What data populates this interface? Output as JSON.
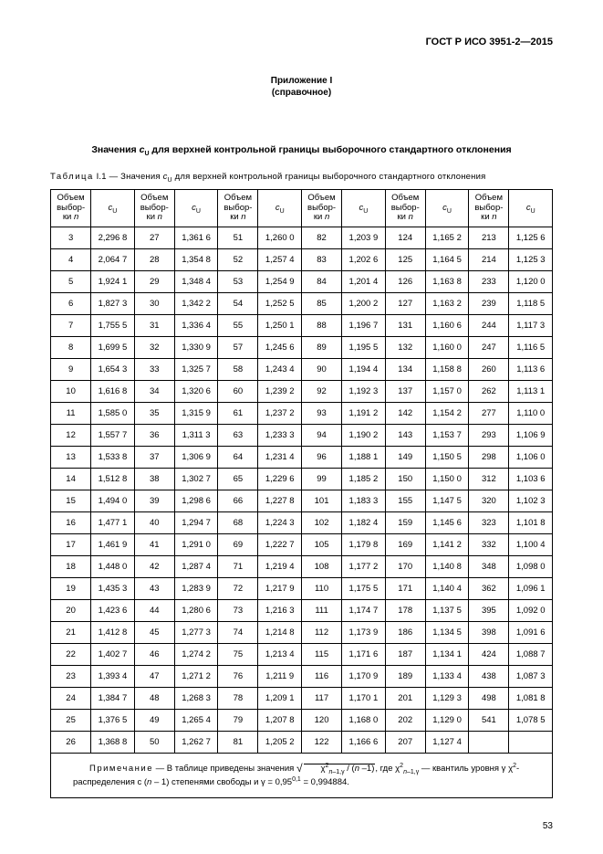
{
  "standard_id": "ГОСТ Р ИСО 3951-2—2015",
  "appendix_line1": "Приложение I",
  "appendix_line2": "(справочное)",
  "title_pre": "Значения ",
  "title_sym": "c",
  "title_sub": "U",
  "title_post": " для верхней контрольной границы выборочного стандартного отклонения",
  "caption_pre": "Таблица",
  "caption_num": " I.1 — Значения ",
  "caption_sym": "c",
  "caption_sub": "U",
  "caption_post": " для верхней контрольной границы выборочного стандартного отклонения",
  "header_n": "Объем выбор-ки ",
  "header_n_ital": "n",
  "header_c": "c",
  "header_c_sub": "U",
  "rows": [
    [
      "3",
      "2,296 8",
      "27",
      "1,361 6",
      "51",
      "1,260 0",
      "82",
      "1,203 9",
      "124",
      "1,165 2",
      "213",
      "1,125 6"
    ],
    [
      "4",
      "2,064 7",
      "28",
      "1,354 8",
      "52",
      "1,257 4",
      "83",
      "1,202 6",
      "125",
      "1,164 5",
      "214",
      "1,125 3"
    ],
    [
      "5",
      "1,924 1",
      "29",
      "1,348 4",
      "53",
      "1,254 9",
      "84",
      "1,201 4",
      "126",
      "1,163 8",
      "233",
      "1,120 0"
    ],
    [
      "6",
      "1,827 3",
      "30",
      "1,342 2",
      "54",
      "1,252 5",
      "85",
      "1,200 2",
      "127",
      "1,163 2",
      "239",
      "1,118 5"
    ],
    [
      "7",
      "1,755 5",
      "31",
      "1,336 4",
      "55",
      "1,250 1",
      "88",
      "1,196 7",
      "131",
      "1,160 6",
      "244",
      "1,117 3"
    ],
    [
      "8",
      "1,699 5",
      "32",
      "1,330 9",
      "57",
      "1,245 6",
      "89",
      "1,195 5",
      "132",
      "1,160 0",
      "247",
      "1,116 5"
    ],
    [
      "9",
      "1,654 3",
      "33",
      "1,325 7",
      "58",
      "1,243 4",
      "90",
      "1,194 4",
      "134",
      "1,158 8",
      "260",
      "1,113 6"
    ],
    [
      "10",
      "1,616 8",
      "34",
      "1,320 6",
      "60",
      "1,239 2",
      "92",
      "1,192 3",
      "137",
      "1,157 0",
      "262",
      "1,113 1"
    ],
    [
      "11",
      "1,585 0",
      "35",
      "1,315 9",
      "61",
      "1,237 2",
      "93",
      "1,191 2",
      "142",
      "1,154 2",
      "277",
      "1,110 0"
    ],
    [
      "12",
      "1,557 7",
      "36",
      "1,311 3",
      "63",
      "1,233 3",
      "94",
      "1,190 2",
      "143",
      "1,153 7",
      "293",
      "1,106 9"
    ],
    [
      "13",
      "1,533 8",
      "37",
      "1,306 9",
      "64",
      "1,231 4",
      "96",
      "1,188 1",
      "149",
      "1,150 5",
      "298",
      "1,106 0"
    ],
    [
      "14",
      "1,512 8",
      "38",
      "1,302 7",
      "65",
      "1,229 6",
      "99",
      "1,185 2",
      "150",
      "1,150 0",
      "312",
      "1,103 6"
    ],
    [
      "15",
      "1,494 0",
      "39",
      "1,298 6",
      "66",
      "1,227 8",
      "101",
      "1,183 3",
      "155",
      "1,147 5",
      "320",
      "1,102 3"
    ],
    [
      "16",
      "1,477 1",
      "40",
      "1,294 7",
      "68",
      "1,224 3",
      "102",
      "1,182 4",
      "159",
      "1,145 6",
      "323",
      "1,101 8"
    ],
    [
      "17",
      "1,461 9",
      "41",
      "1,291 0",
      "69",
      "1,222 7",
      "105",
      "1,179 8",
      "169",
      "1,141 2",
      "332",
      "1,100 4"
    ],
    [
      "18",
      "1,448 0",
      "42",
      "1,287 4",
      "71",
      "1,219 4",
      "108",
      "1,177 2",
      "170",
      "1,140 8",
      "348",
      "1,098 0"
    ],
    [
      "19",
      "1,435 3",
      "43",
      "1,283 9",
      "72",
      "1,217 9",
      "110",
      "1,175 5",
      "171",
      "1,140 4",
      "362",
      "1,096 1"
    ],
    [
      "20",
      "1,423 6",
      "44",
      "1,280 6",
      "73",
      "1,216 3",
      "111",
      "1,174 7",
      "178",
      "1,137 5",
      "395",
      "1,092 0"
    ],
    [
      "21",
      "1,412 8",
      "45",
      "1,277 3",
      "74",
      "1,214 8",
      "112",
      "1,173 9",
      "186",
      "1,134 5",
      "398",
      "1,091 6"
    ],
    [
      "22",
      "1,402 7",
      "46",
      "1,274 2",
      "75",
      "1,213 4",
      "115",
      "1,171 6",
      "187",
      "1,134 1",
      "424",
      "1,088 7"
    ],
    [
      "23",
      "1,393 4",
      "47",
      "1,271 2",
      "76",
      "1,211 9",
      "116",
      "1,170 9",
      "189",
      "1,133 4",
      "438",
      "1,087 3"
    ],
    [
      "24",
      "1,384 7",
      "48",
      "1,268 3",
      "78",
      "1,209 1",
      "117",
      "1,170 1",
      "201",
      "1,129 3",
      "498",
      "1,081 8"
    ],
    [
      "25",
      "1,376 5",
      "49",
      "1,265 4",
      "79",
      "1,207 8",
      "120",
      "1,168 0",
      "202",
      "1,129 0",
      "541",
      "1,078 5"
    ],
    [
      "26",
      "1,368 8",
      "50",
      "1,262 7",
      "81",
      "1,205 2",
      "122",
      "1,166 6",
      "207",
      "1,127 4",
      "",
      ""
    ]
  ],
  "note_label": "Примечание",
  "note_text1": " — В таблице приведены значения ",
  "note_text2": ", где ",
  "note_text3": " — квантиль уровня γ χ",
  "note_text4": "-распределения с (",
  "note_text5": " – 1) степенями свободы и γ = 0,95",
  "note_text6": " = 0,994884.",
  "page_num": "53"
}
